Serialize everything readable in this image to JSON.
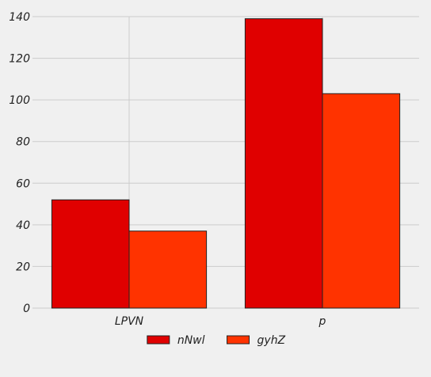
{
  "chart_data": {
    "type": "bar",
    "categories": [
      "LPVN",
      "p"
    ],
    "series": [
      {
        "name": "nNwl",
        "values": [
          52,
          139
        ],
        "color": "#e00000"
      },
      {
        "name": "gyhZ",
        "values": [
          37,
          103
        ],
        "color": "#ff3300"
      }
    ],
    "ylim": [
      0,
      140
    ],
    "yticks": [
      0,
      20,
      40,
      60,
      80,
      100,
      120,
      140
    ],
    "grid": true,
    "legend_position": "bottom-center",
    "background": "#f0f0f0"
  }
}
